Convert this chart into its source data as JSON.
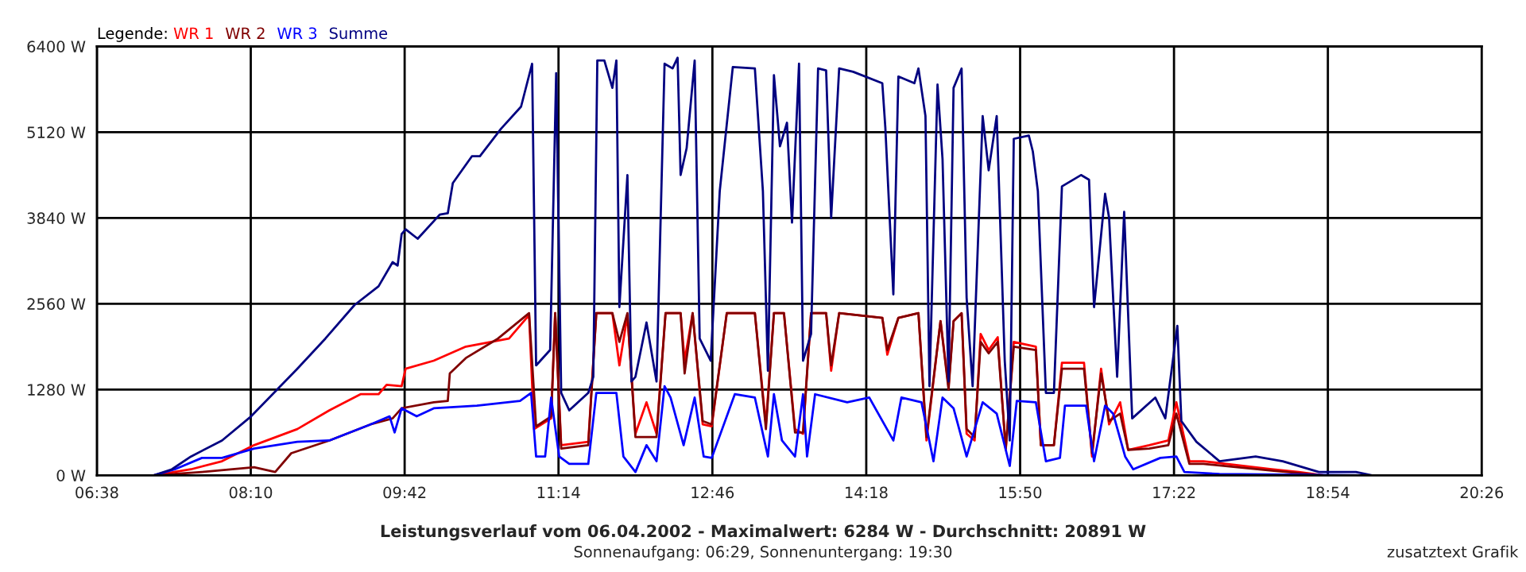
{
  "chart_data": {
    "type": "line",
    "title": "Leistungsverlauf vom 06.04.2002 - Maximalwert: 6284 W - Durchschnitt: 20891 W",
    "subtitle": "Sonnenaufgang: 06:29, Sonnenuntergang: 19:30",
    "legend_title": "Legende:",
    "annotations": [
      "zusatztext Grafik"
    ],
    "legend": "top left",
    "grid": true,
    "marker": "none",
    "line_style": "solid",
    "xlim": [
      6.633333,
      20.433333
    ],
    "xticks": [
      {
        "value": 6.633333,
        "label": "06:38"
      },
      {
        "value": 8.166667,
        "label": "08:10"
      },
      {
        "value": 9.7,
        "label": "09:42"
      },
      {
        "value": 11.233333,
        "label": "11:14"
      },
      {
        "value": 12.766667,
        "label": "12:46"
      },
      {
        "value": 14.3,
        "label": "14:18"
      },
      {
        "value": 15.833333,
        "label": "15:50"
      },
      {
        "value": 17.366667,
        "label": "17:22"
      },
      {
        "value": 18.9,
        "label": "18:54"
      },
      {
        "value": 20.433333,
        "label": "20:26"
      }
    ],
    "ylim": [
      0,
      6400
    ],
    "yticks": [
      {
        "value": 0,
        "label": "0 W"
      },
      {
        "value": 1280,
        "label": "1280 W"
      },
      {
        "value": 2560,
        "label": "2560 W"
      },
      {
        "value": 3840,
        "label": "3840 W"
      },
      {
        "value": 5120,
        "label": "5120 W"
      },
      {
        "value": 6400,
        "label": "6400 W"
      }
    ],
    "series": [
      {
        "name": "WR 1",
        "color": "#ff0000",
        "x": [
          7.2,
          7.57,
          7.88,
          8.2,
          8.63,
          8.95,
          9.26,
          9.44,
          9.52,
          9.67,
          9.71,
          9.99,
          10.31,
          10.74,
          10.94,
          10.99,
          11.16,
          11.2,
          11.26,
          11.53,
          11.61,
          11.77,
          11.84,
          11.92,
          12.0,
          12.11,
          12.21,
          12.3,
          12.45,
          12.49,
          12.57,
          12.67,
          12.76,
          12.91,
          13.19,
          13.3,
          13.38,
          13.48,
          13.59,
          13.67,
          13.75,
          13.9,
          13.95,
          14.03,
          14.46,
          14.51,
          14.62,
          14.82,
          14.9,
          15.04,
          15.12,
          15.17,
          15.25,
          15.3,
          15.38,
          15.44,
          15.52,
          15.61,
          15.69,
          15.77,
          15.99,
          16.04,
          16.17,
          16.25,
          16.47,
          16.55,
          16.64,
          16.72,
          16.83,
          16.91,
          17.12,
          17.31,
          17.39,
          17.52,
          17.66,
          18.34,
          18.61,
          18.86,
          19.34
        ],
        "values": [
          0,
          90,
          210,
          450,
          690,
          970,
          1210,
          1210,
          1350,
          1330,
          1590,
          1710,
          1920,
          2040,
          2390,
          690,
          850,
          2420,
          450,
          500,
          2420,
          2420,
          1640,
          2390,
          620,
          1090,
          620,
          2420,
          2420,
          1710,
          2420,
          760,
          730,
          2420,
          2420,
          760,
          2420,
          2420,
          690,
          620,
          2420,
          2420,
          1560,
          2420,
          2350,
          1800,
          2350,
          2420,
          520,
          2300,
          1330,
          2300,
          2420,
          620,
          520,
          2110,
          1870,
          2060,
          380,
          1990,
          1920,
          450,
          450,
          1680,
          1680,
          280,
          1590,
          760,
          1090,
          380,
          450,
          520,
          1090,
          210,
          210,
          90,
          50,
          0,
          0
        ]
      },
      {
        "name": "WR 2",
        "color": "#800000",
        "x": [
          7.2,
          7.68,
          8.2,
          8.41,
          8.57,
          8.95,
          9.36,
          9.58,
          9.67,
          9.99,
          10.13,
          10.15,
          10.31,
          10.63,
          10.94,
          11.01,
          11.16,
          11.2,
          11.26,
          11.53,
          11.61,
          11.77,
          11.84,
          11.92,
          12.0,
          12.21,
          12.3,
          12.45,
          12.49,
          12.57,
          12.67,
          12.76,
          12.91,
          13.19,
          13.3,
          13.38,
          13.48,
          13.59,
          13.67,
          13.75,
          13.9,
          13.95,
          14.03,
          14.46,
          14.51,
          14.62,
          14.82,
          14.9,
          15.04,
          15.12,
          15.17,
          15.25,
          15.3,
          15.38,
          15.44,
          15.52,
          15.61,
          15.69,
          15.77,
          15.99,
          16.04,
          16.17,
          16.25,
          16.47,
          16.55,
          16.64,
          16.72,
          16.83,
          16.91,
          17.12,
          17.31,
          17.39,
          17.52,
          17.66,
          18.34,
          18.86,
          19.34
        ],
        "values": [
          0,
          50,
          120,
          50,
          330,
          520,
          760,
          850,
          1000,
          1090,
          1110,
          1520,
          1750,
          2040,
          2420,
          730,
          880,
          2420,
          400,
          450,
          2420,
          2420,
          1990,
          2420,
          570,
          570,
          2420,
          2420,
          1520,
          2420,
          810,
          760,
          2420,
          2420,
          690,
          2420,
          2420,
          640,
          640,
          2420,
          2420,
          1640,
          2420,
          2350,
          1870,
          2350,
          2420,
          570,
          2300,
          1280,
          2300,
          2420,
          690,
          570,
          1990,
          1820,
          1990,
          400,
          1920,
          1870,
          450,
          450,
          1590,
          1590,
          330,
          1520,
          810,
          920,
          380,
          400,
          450,
          920,
          170,
          170,
          70,
          0,
          0
        ]
      },
      {
        "name": "WR 3",
        "color": "#0000ff",
        "x": [
          7.2,
          7.41,
          7.68,
          7.88,
          8.2,
          8.63,
          8.95,
          9.36,
          9.55,
          9.6,
          9.67,
          9.82,
          9.99,
          10.42,
          10.85,
          10.96,
          11.01,
          11.1,
          11.16,
          11.24,
          11.34,
          11.53,
          11.61,
          11.81,
          11.88,
          12.0,
          12.11,
          12.21,
          12.29,
          12.35,
          12.48,
          12.59,
          12.68,
          12.76,
          12.99,
          13.19,
          13.32,
          13.38,
          13.46,
          13.59,
          13.67,
          13.71,
          13.79,
          14.11,
          14.33,
          14.57,
          14.65,
          14.85,
          14.97,
          15.06,
          15.17,
          15.3,
          15.46,
          15.6,
          15.73,
          15.8,
          15.99,
          16.09,
          16.23,
          16.28,
          16.49,
          16.57,
          16.68,
          16.76,
          16.88,
          16.96,
          17.23,
          17.39,
          17.47,
          17.82,
          19.34
        ],
        "values": [
          0,
          90,
          260,
          260,
          400,
          500,
          520,
          760,
          880,
          640,
          1000,
          880,
          1000,
          1040,
          1110,
          1230,
          280,
          280,
          1160,
          280,
          170,
          170,
          1230,
          1230,
          280,
          50,
          450,
          210,
          1330,
          1160,
          450,
          1160,
          280,
          260,
          1210,
          1160,
          280,
          1210,
          520,
          280,
          1210,
          280,
          1210,
          1090,
          1160,
          520,
          1160,
          1090,
          210,
          1160,
          1000,
          280,
          1090,
          920,
          140,
          1110,
          1090,
          210,
          260,
          1040,
          1040,
          210,
          1040,
          920,
          280,
          90,
          260,
          280,
          50,
          20,
          0
        ]
      },
      {
        "name": "Summe",
        "color": "#000080",
        "x": [
          7.2,
          7.38,
          7.57,
          7.88,
          8.17,
          8.63,
          8.91,
          9.2,
          9.44,
          9.58,
          9.63,
          9.67,
          9.71,
          9.83,
          10.05,
          10.13,
          10.18,
          10.37,
          10.45,
          10.66,
          10.86,
          10.97,
          11.01,
          11.15,
          11.21,
          11.26,
          11.34,
          11.53,
          11.58,
          11.62,
          11.69,
          11.77,
          11.81,
          11.84,
          11.92,
          11.96,
          12.0,
          12.11,
          12.21,
          12.29,
          12.37,
          12.42,
          12.45,
          12.51,
          12.59,
          12.64,
          12.75,
          12.84,
          12.97,
          13.19,
          13.27,
          13.32,
          13.38,
          13.44,
          13.51,
          13.56,
          13.63,
          13.67,
          13.75,
          13.82,
          13.9,
          13.95,
          14.03,
          14.17,
          14.46,
          14.49,
          14.57,
          14.62,
          14.78,
          14.82,
          14.89,
          14.93,
          15.01,
          15.06,
          15.12,
          15.17,
          15.25,
          15.3,
          15.36,
          15.46,
          15.52,
          15.6,
          15.68,
          15.73,
          15.77,
          15.92,
          15.96,
          16.01,
          16.09,
          16.17,
          16.25,
          16.44,
          16.52,
          16.57,
          16.68,
          16.72,
          16.8,
          16.87,
          16.95,
          17.18,
          17.28,
          17.4,
          17.44,
          17.59,
          17.82,
          18.18,
          18.45,
          18.81,
          19.18,
          19.34
        ],
        "values": [
          0,
          90,
          280,
          520,
          880,
          1590,
          2040,
          2540,
          2820,
          3180,
          3130,
          3600,
          3670,
          3530,
          3890,
          3910,
          4360,
          4760,
          4760,
          5170,
          5500,
          6140,
          1640,
          1870,
          6000,
          1230,
          970,
          1230,
          1470,
          6190,
          6190,
          5780,
          6190,
          2510,
          4480,
          1400,
          1470,
          2280,
          1400,
          6140,
          6070,
          6230,
          4480,
          4880,
          6190,
          2040,
          1710,
          4240,
          6090,
          6070,
          4240,
          1560,
          5970,
          4910,
          5260,
          3770,
          6140,
          1710,
          2110,
          6070,
          6040,
          3840,
          6070,
          6020,
          5850,
          5190,
          2700,
          5950,
          5850,
          6070,
          5360,
          1330,
          5830,
          4720,
          1400,
          5780,
          6070,
          2650,
          1330,
          5360,
          4550,
          5360,
          1710,
          520,
          5020,
          5070,
          4830,
          4240,
          1230,
          1230,
          4310,
          4480,
          4410,
          2510,
          4200,
          3840,
          1470,
          3930,
          850,
          1160,
          850,
          2230,
          810,
          500,
          210,
          280,
          210,
          50,
          50,
          0
        ]
      }
    ]
  }
}
